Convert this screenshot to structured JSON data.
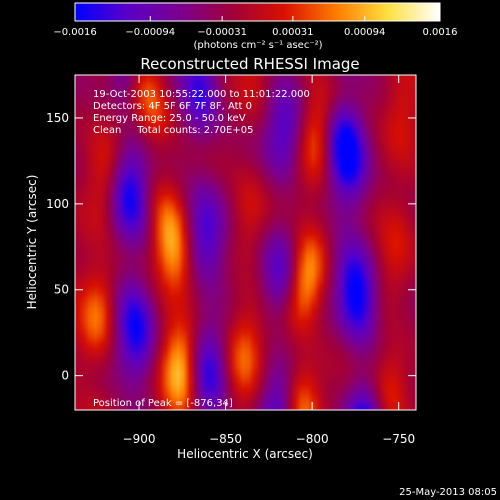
{
  "chart_data": {
    "type": "heatmap",
    "title": "Reconstructed RHESSI Image",
    "xlabel": "Heliocentric X (arcsec)",
    "ylabel": "Heliocentric Y (arcsec)",
    "xlim": [
      -937,
      -740
    ],
    "ylim": [
      -20,
      175
    ],
    "x_ticks": [
      -900,
      -850,
      -800,
      -750
    ],
    "x_tick_labels": [
      "−900",
      "−850",
      "−800",
      "−750"
    ],
    "y_ticks": [
      0,
      50,
      100,
      150
    ],
    "y_tick_labels": [
      "0",
      "50",
      "100",
      "150"
    ],
    "colorbar": {
      "min": -0.0016,
      "max": 0.0016,
      "ticks": [
        -0.0016,
        -0.00094,
        -0.00031,
        0.00031,
        0.00094,
        0.0016
      ],
      "tick_labels": [
        "−0.0016",
        "−0.00094",
        "−0.00031",
        "0.00031",
        "0.00094",
        "0.0016"
      ],
      "unit_label": "(photons cm⁻² s⁻¹ asec⁻²)",
      "colormap": [
        "#0000ff",
        "#5a00c8",
        "#7a0090",
        "#a0003a",
        "#d81000",
        "#ff7a00",
        "#ffe040",
        "#ffffff"
      ]
    },
    "features": [
      {
        "type": "ridge",
        "sign": "positive",
        "peak": 0.0016,
        "points": [
          [
            -876,
            34
          ],
          [
            -883,
            90
          ],
          [
            -892,
            150
          ],
          [
            -898,
            178
          ]
        ]
      },
      {
        "type": "ridge",
        "sign": "positive",
        "peak": 0.0014,
        "points": [
          [
            -806,
            30
          ],
          [
            -800,
            90
          ],
          [
            -796,
            150
          ],
          [
            -793,
            180
          ]
        ]
      },
      {
        "type": "ridge",
        "sign": "positive",
        "peak": 0.0009,
        "points": [
          [
            -925,
            20
          ],
          [
            -920,
            100
          ],
          [
            -915,
            170
          ]
        ]
      },
      {
        "type": "ridge",
        "sign": "positive",
        "peak": 0.0008,
        "points": [
          [
            -840,
            0
          ],
          [
            -837,
            90
          ],
          [
            -833,
            175
          ]
        ]
      },
      {
        "type": "ridge",
        "sign": "positive",
        "peak": 0.0007,
        "points": [
          [
            -755,
            -10
          ],
          [
            -752,
            60
          ],
          [
            -748,
            140
          ]
        ]
      },
      {
        "type": "trough",
        "sign": "negative",
        "peak": -0.0016,
        "points": [
          [
            -770,
            -10
          ],
          [
            -776,
            70
          ],
          [
            -784,
            170
          ]
        ]
      },
      {
        "type": "trough",
        "sign": "negative",
        "peak": -0.0013,
        "points": [
          [
            -900,
            -15
          ],
          [
            -905,
            80
          ],
          [
            -908,
            170
          ]
        ]
      },
      {
        "type": "trough",
        "sign": "negative",
        "peak": -0.0011,
        "points": [
          [
            -860,
            -15
          ],
          [
            -862,
            80
          ],
          [
            -865,
            175
          ]
        ]
      },
      {
        "type": "trough",
        "sign": "negative",
        "peak": -0.001,
        "points": [
          [
            -820,
            -15
          ],
          [
            -818,
            80
          ],
          [
            -815,
            175
          ]
        ]
      }
    ],
    "annotations": [
      "19-Oct-2003 10:55:22.000 to 11:01:22.000",
      "Detectors: 4F 5F 6F 7F 8F, Att 0",
      "Energy Range: 25.0 - 50.0 keV",
      "Clean     Total counts: 2.70E+05"
    ],
    "peak_label": "Position of Peak = [-876,34]",
    "timestamp": "25-May-2013 08:05"
  }
}
